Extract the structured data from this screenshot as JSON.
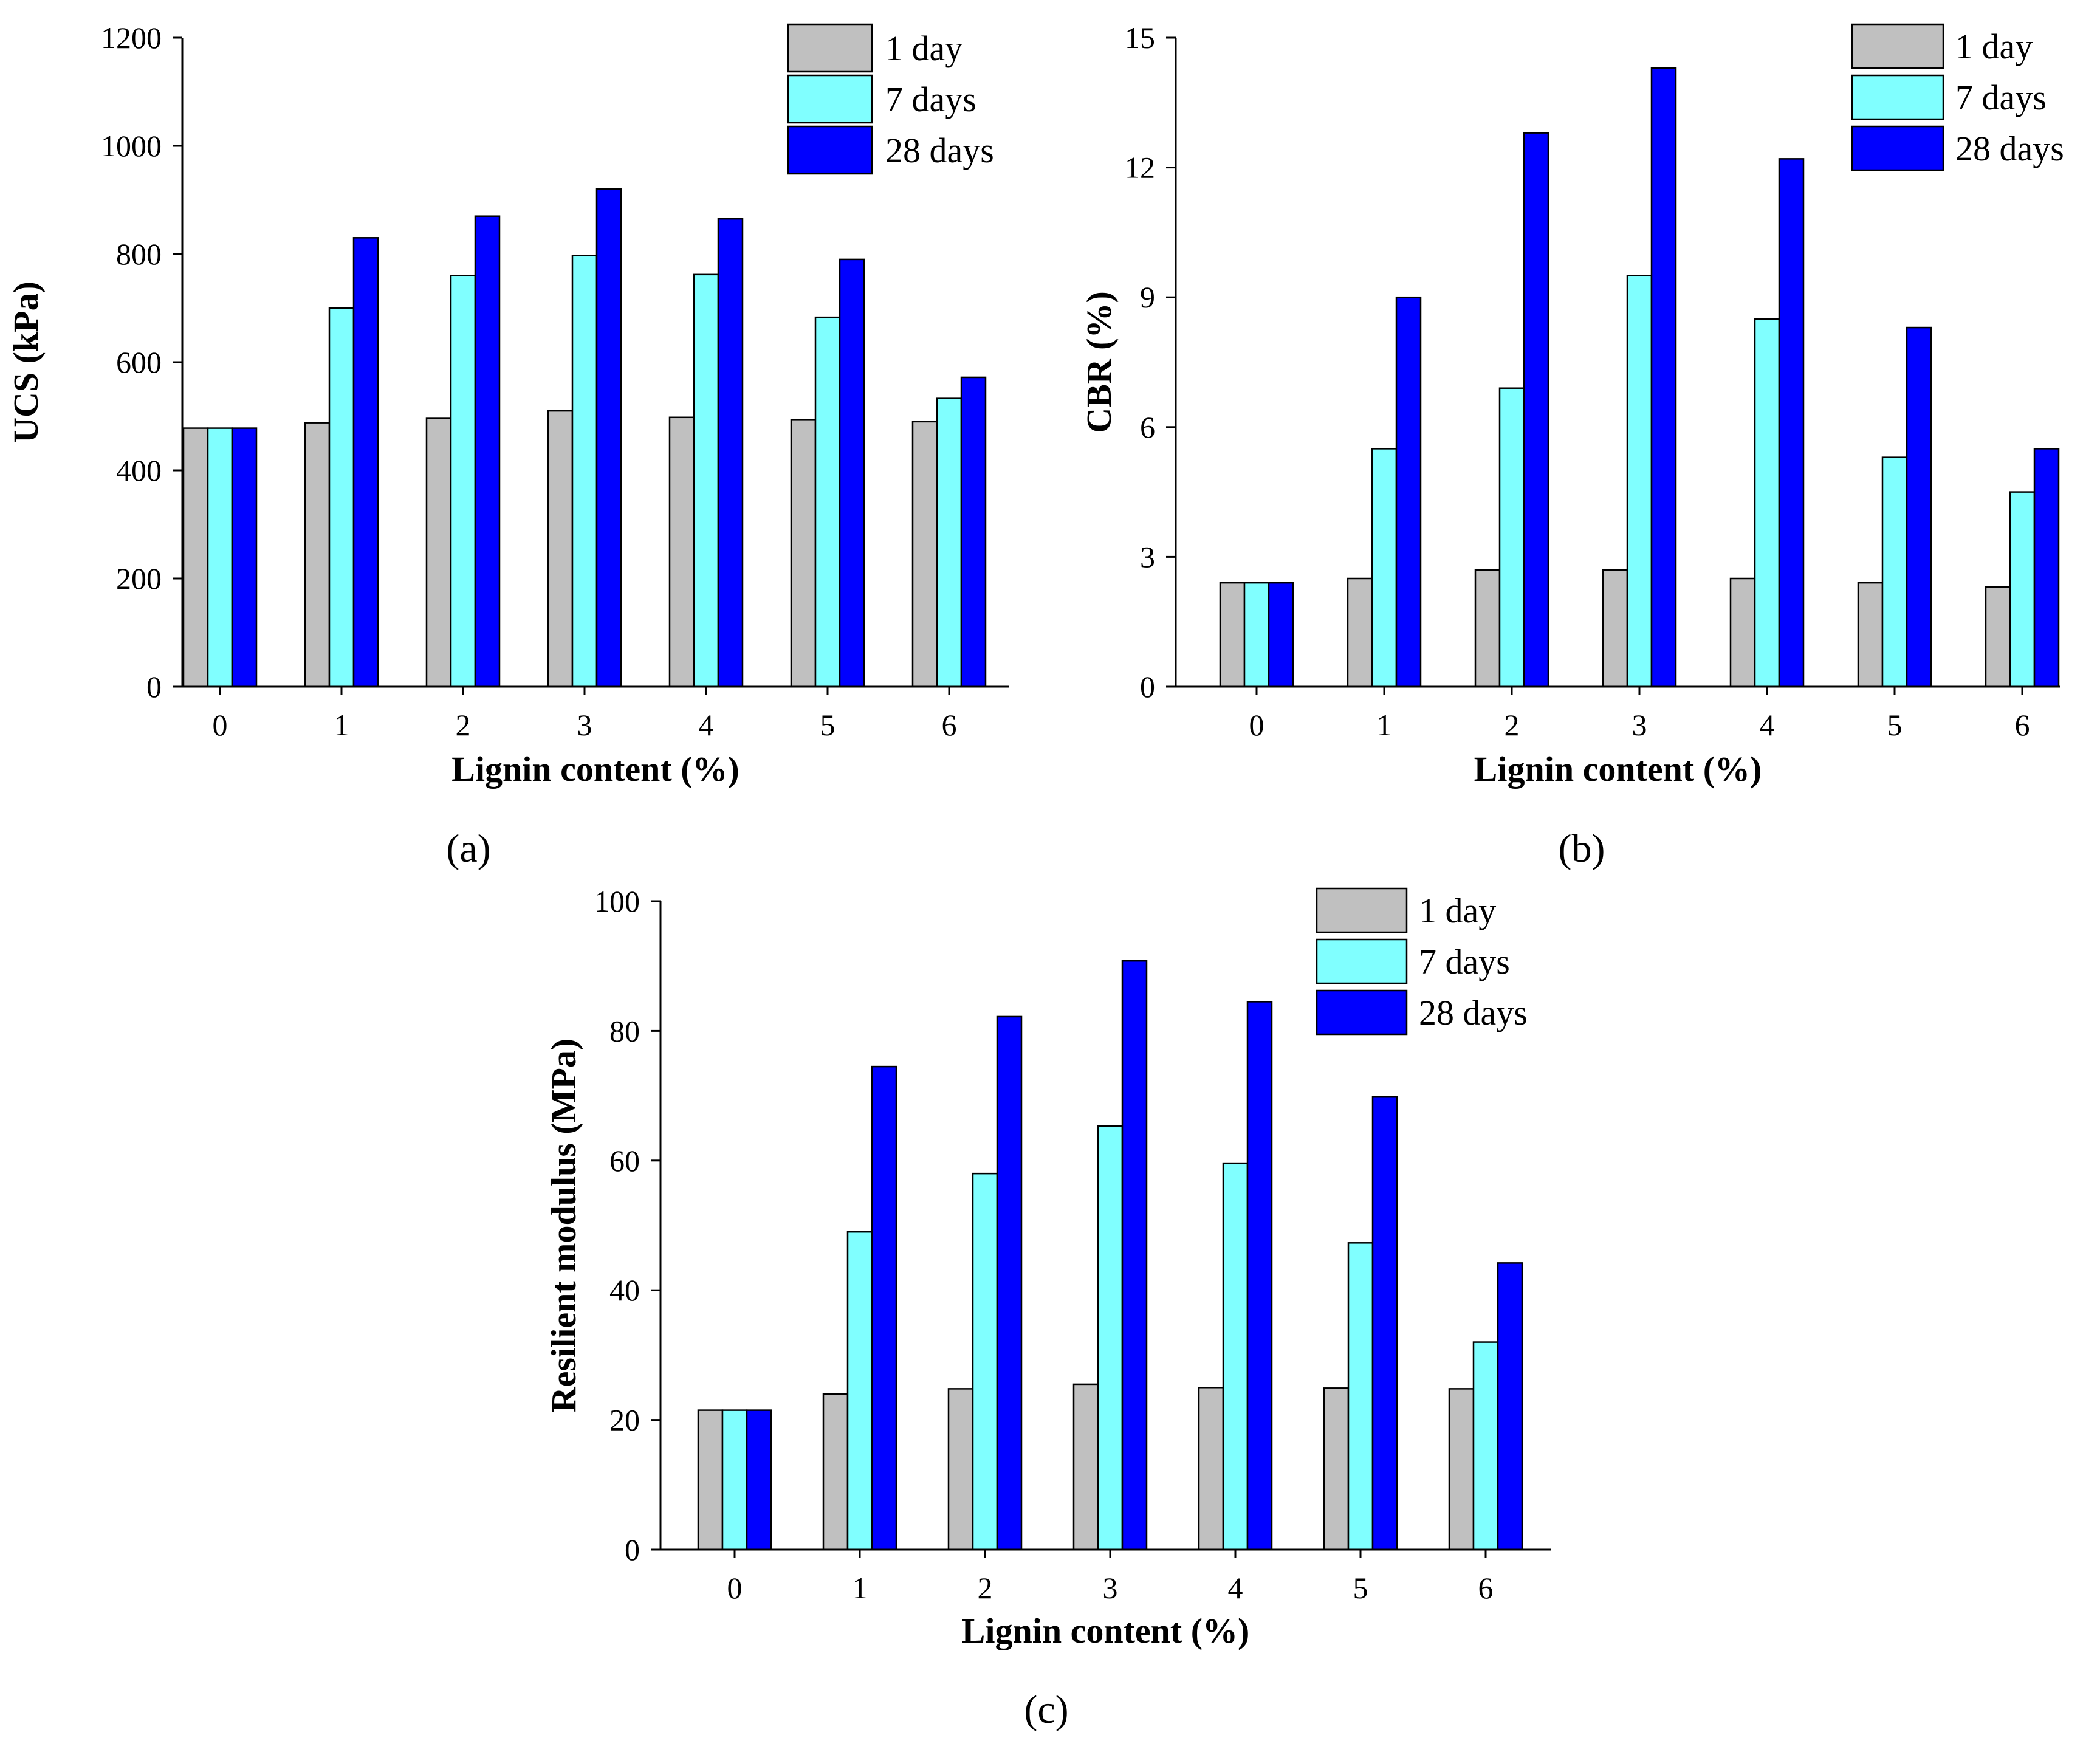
{
  "chart_data": [
    {
      "id": "a",
      "type": "bar",
      "panel_label": "(a)",
      "xlabel": "Lignin content (%)",
      "ylabel": "UCS (kPa)",
      "categories": [
        "0",
        "1",
        "2",
        "3",
        "4",
        "5",
        "6"
      ],
      "ylim": [
        0,
        1200
      ],
      "yticks": [
        0,
        200,
        400,
        600,
        800,
        1000,
        1200
      ],
      "legend_position": "top-right",
      "series": [
        {
          "name": "1 day",
          "color": "#c0c0c0",
          "values": [
            478,
            488,
            496,
            510,
            498,
            494,
            490
          ]
        },
        {
          "name": "7 days",
          "color": "#80ffff",
          "values": [
            478,
            700,
            760,
            797,
            762,
            683,
            533
          ]
        },
        {
          "name": "28 days",
          "color": "#0000ff",
          "values": [
            478,
            830,
            870,
            920,
            865,
            790,
            572
          ]
        }
      ]
    },
    {
      "id": "b",
      "type": "bar",
      "panel_label": "(b)",
      "xlabel": "Lignin content (%)",
      "ylabel": "CBR (%)",
      "categories": [
        "0",
        "1",
        "2",
        "3",
        "4",
        "5",
        "6"
      ],
      "ylim": [
        0,
        15
      ],
      "yticks": [
        0,
        3,
        6,
        9,
        12,
        15
      ],
      "legend_position": "top-right",
      "series": [
        {
          "name": "1 day",
          "color": "#c0c0c0",
          "values": [
            2.4,
            2.5,
            2.7,
            2.7,
            2.5,
            2.4,
            2.3
          ]
        },
        {
          "name": "7 days",
          "color": "#80ffff",
          "values": [
            2.4,
            5.5,
            6.9,
            9.5,
            8.5,
            5.3,
            4.5
          ]
        },
        {
          "name": "28 days",
          "color": "#0000ff",
          "values": [
            2.4,
            9.0,
            12.8,
            14.3,
            12.2,
            8.3,
            5.5
          ]
        }
      ]
    },
    {
      "id": "c",
      "type": "bar",
      "panel_label": "(c)",
      "xlabel": "Lignin content (%)",
      "ylabel": "Resilient modulus (MPa)",
      "categories": [
        "0",
        "1",
        "2",
        "3",
        "4",
        "5",
        "6"
      ],
      "ylim": [
        0,
        100
      ],
      "yticks": [
        0,
        20,
        40,
        60,
        80,
        100
      ],
      "legend_position": "top-right",
      "series": [
        {
          "name": "1 day",
          "color": "#c0c0c0",
          "values": [
            21.5,
            24.0,
            24.8,
            25.5,
            25.0,
            24.9,
            24.8
          ]
        },
        {
          "name": "7 days",
          "color": "#80ffff",
          "values": [
            21.5,
            49.0,
            58.0,
            65.3,
            59.6,
            47.3,
            32.0
          ]
        },
        {
          "name": "28 days",
          "color": "#0000ff",
          "values": [
            21.5,
            74.5,
            82.2,
            90.8,
            84.5,
            69.8,
            44.2
          ]
        }
      ]
    }
  ]
}
